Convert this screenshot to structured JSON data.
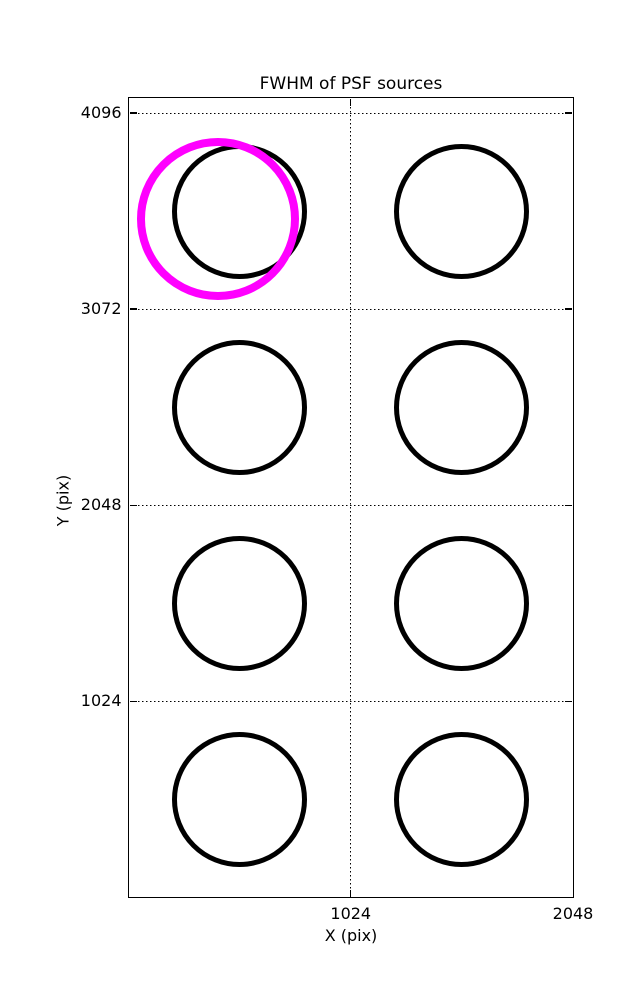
{
  "chart_data": {
    "type": "scatter",
    "title": "FWHM of PSF sources",
    "xlabel": "X (pix)",
    "ylabel": "Y (pix)",
    "xlim": [
      0,
      2048
    ],
    "ylim": [
      0,
      4177
    ],
    "xticks": [
      1024,
      2048
    ],
    "yticks": [
      1024,
      2048,
      3072,
      4096
    ],
    "grid": "dotted",
    "background": "#ffffff",
    "axis_color": "#000000",
    "series": [
      {
        "name": "psf-source",
        "legend": null,
        "marker": "open-circle",
        "color": "#000000",
        "marker_outer_radius_px": 67.5,
        "stroke_px": 5.5,
        "points": [
          [
            512,
            3584
          ],
          [
            1536,
            3584
          ],
          [
            512,
            2560
          ],
          [
            1536,
            2560
          ],
          [
            512,
            1536
          ],
          [
            1536,
            1536
          ],
          [
            512,
            512
          ],
          [
            1536,
            512
          ]
        ]
      },
      {
        "name": "highlighted-source",
        "legend": null,
        "marker": "open-circle",
        "color": "#ff00ff",
        "marker_outer_radius_px": 81,
        "stroke_px": 8,
        "points": [
          [
            412,
            3542
          ]
        ]
      }
    ]
  }
}
